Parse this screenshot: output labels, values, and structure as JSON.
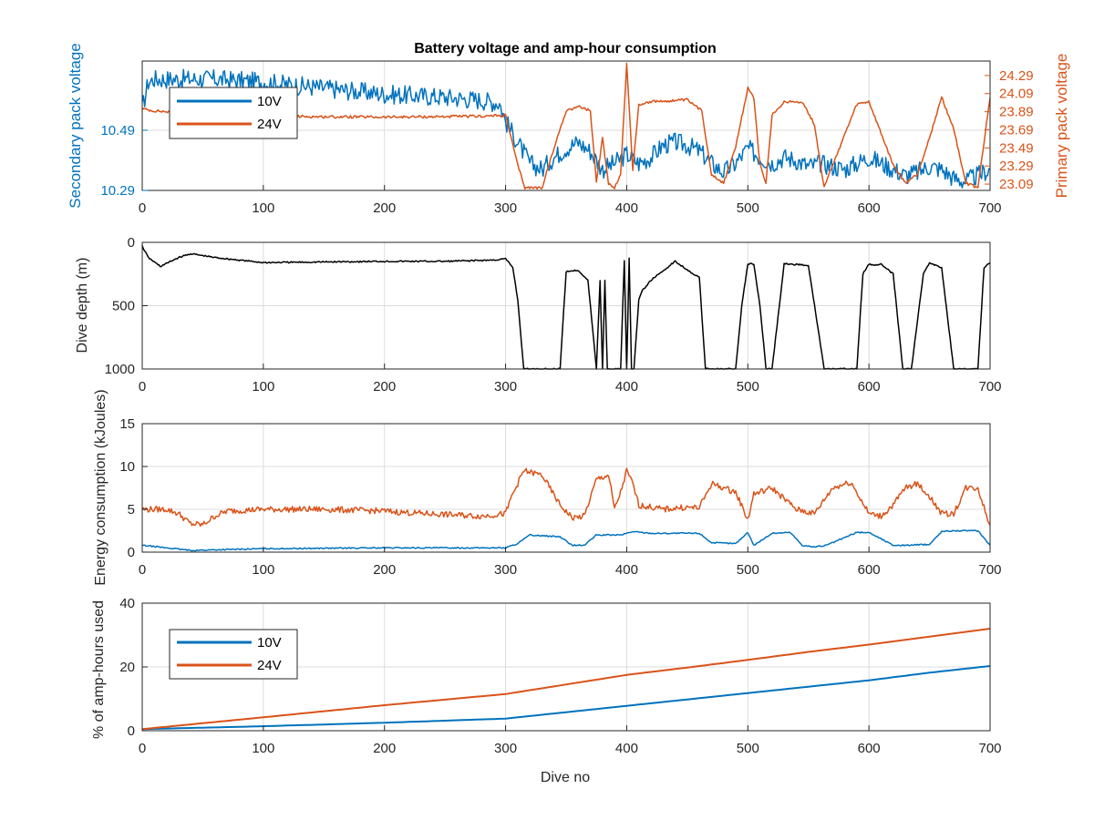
{
  "figure": {
    "title": "Battery voltage and amp-hour consumption",
    "xlabel": "Dive no"
  },
  "chart_data": [
    {
      "type": "line",
      "title": "Battery voltage and amp-hour consumption",
      "xlabel": "",
      "ylabel_left": "Secondary pack voltage",
      "ylabel_right": "Primary pack voltage",
      "xlim": [
        0,
        700
      ],
      "xticks": [
        0,
        100,
        200,
        300,
        400,
        500,
        600,
        700
      ],
      "ylim_left": [
        10.29,
        10.72
      ],
      "yticks_left": [
        10.29,
        10.49
      ],
      "ylim_right": [
        23.02,
        24.45
      ],
      "yticks_right": [
        23.09,
        23.29,
        23.49,
        23.69,
        23.89,
        24.09,
        24.29
      ],
      "grid": true,
      "legend_position": "top-left",
      "series": [
        {
          "name": "10V",
          "axis": "left",
          "color": "#0072BD",
          "noise": 0.032,
          "x": [
            0,
            5,
            10,
            30,
            60,
            100,
            150,
            200,
            250,
            280,
            295,
            300,
            310,
            320,
            330,
            340,
            350,
            360,
            370,
            380,
            390,
            400,
            410,
            420,
            430,
            440,
            450,
            460,
            470,
            480,
            490,
            500,
            510,
            520,
            530,
            540,
            550,
            560,
            570,
            580,
            590,
            600,
            610,
            620,
            630,
            640,
            650,
            660,
            670,
            680,
            690,
            700
          ],
          "y": [
            10.56,
            10.65,
            10.66,
            10.66,
            10.66,
            10.65,
            10.63,
            10.61,
            10.6,
            10.59,
            10.58,
            10.52,
            10.45,
            10.38,
            10.36,
            10.4,
            10.43,
            10.45,
            10.42,
            10.36,
            10.38,
            10.41,
            10.38,
            10.4,
            10.44,
            10.45,
            10.44,
            10.42,
            10.38,
            10.35,
            10.38,
            10.43,
            10.4,
            10.38,
            10.4,
            10.39,
            10.37,
            10.38,
            10.37,
            10.36,
            10.38,
            10.4,
            10.38,
            10.36,
            10.34,
            10.35,
            10.37,
            10.36,
            10.33,
            10.32,
            10.34,
            10.36
          ]
        },
        {
          "name": "24V",
          "axis": "right",
          "color": "#D95319",
          "noise": 0.015,
          "x": [
            0,
            10,
            30,
            60,
            100,
            200,
            280,
            300,
            310,
            316,
            330,
            345,
            350,
            360,
            370,
            375,
            380,
            385,
            390,
            395,
            400,
            405,
            410,
            420,
            450,
            462,
            470,
            480,
            490,
            500,
            505,
            510,
            515,
            520,
            530,
            545,
            555,
            563,
            570,
            590,
            600,
            620,
            630,
            640,
            650,
            660,
            670,
            680,
            690,
            700
          ],
          "y": [
            23.92,
            23.9,
            23.88,
            23.85,
            23.84,
            23.83,
            23.84,
            23.85,
            23.3,
            23.05,
            23.05,
            23.7,
            23.9,
            23.95,
            23.9,
            23.1,
            23.6,
            23.1,
            23.05,
            23.2,
            24.42,
            23.25,
            23.97,
            24.0,
            24.02,
            23.9,
            23.2,
            23.1,
            23.5,
            24.15,
            24.05,
            23.3,
            23.1,
            23.85,
            24.0,
            24.0,
            23.75,
            23.05,
            23.3,
            23.97,
            24.0,
            23.3,
            23.1,
            23.2,
            23.6,
            24.05,
            23.7,
            23.1,
            23.05,
            24.05
          ]
        }
      ]
    },
    {
      "type": "line",
      "ylabel": "Dive depth (m)",
      "xlim": [
        0,
        700
      ],
      "xticks": [
        0,
        100,
        200,
        300,
        400,
        500,
        600,
        700
      ],
      "ylim": [
        0,
        1000
      ],
      "y_reversed": true,
      "yticks": [
        0,
        500,
        1000
      ],
      "grid": true,
      "series": [
        {
          "name": "",
          "color": "#000000",
          "noise": 6,
          "x": [
            0,
            5,
            15,
            30,
            40,
            60,
            100,
            200,
            250,
            290,
            300,
            306,
            310,
            315,
            320,
            345,
            350,
            360,
            368,
            375,
            378,
            380,
            382,
            384,
            386,
            395,
            398,
            400,
            402,
            404,
            406,
            410,
            413,
            420,
            440,
            460,
            465,
            470,
            490,
            495,
            500,
            505,
            510,
            515,
            520,
            530,
            550,
            563,
            568,
            590,
            595,
            600,
            605,
            610,
            620,
            628,
            635,
            645,
            650,
            660,
            670,
            690,
            695,
            700
          ],
          "y": [
            30,
            120,
            190,
            120,
            90,
            120,
            160,
            150,
            150,
            140,
            130,
            200,
            450,
            1000,
            1000,
            1000,
            230,
            220,
            300,
            1000,
            300,
            1000,
            300,
            1000,
            1000,
            1000,
            150,
            1000,
            120,
            1000,
            1000,
            450,
            380,
            300,
            150,
            280,
            1000,
            1000,
            1000,
            500,
            170,
            170,
            500,
            1000,
            1000,
            170,
            180,
            1000,
            1000,
            1000,
            250,
            170,
            180,
            170,
            250,
            1000,
            1000,
            250,
            160,
            200,
            1000,
            1000,
            200,
            160
          ]
        }
      ]
    },
    {
      "type": "line",
      "ylabel": "Energy consumption (kJoules)",
      "xlim": [
        0,
        700
      ],
      "xticks": [
        0,
        100,
        200,
        300,
        400,
        500,
        600,
        700
      ],
      "ylim": [
        0,
        15
      ],
      "yticks": [
        0,
        5,
        10,
        15
      ],
      "grid": true,
      "series": [
        {
          "name": "",
          "color": "#D95319",
          "noise": 0.35,
          "x": [
            0,
            20,
            30,
            40,
            50,
            60,
            70,
            100,
            150,
            200,
            220,
            250,
            280,
            300,
            305,
            315,
            330,
            345,
            355,
            365,
            375,
            385,
            390,
            395,
            400,
            405,
            410,
            430,
            445,
            460,
            470,
            490,
            500,
            505,
            520,
            540,
            555,
            570,
            585,
            600,
            610,
            620,
            630,
            640,
            650,
            660,
            670,
            680,
            690,
            700
          ],
          "y": [
            5,
            5,
            4.5,
            3.3,
            3.2,
            4.2,
            4.8,
            5,
            5,
            4.8,
            4.6,
            4.4,
            4.2,
            4.5,
            6.5,
            9.5,
            9,
            5.5,
            4,
            4.2,
            8.5,
            9,
            5,
            7,
            9.5,
            8,
            5.5,
            5,
            5.2,
            5.2,
            8,
            7,
            3.8,
            6.8,
            7.5,
            5,
            4.5,
            7.5,
            8.2,
            4.5,
            4.2,
            5.5,
            7.5,
            8,
            6.5,
            4.5,
            4.5,
            7.5,
            7.5,
            3
          ]
        },
        {
          "name": "",
          "color": "#0072BD",
          "noise": 0.07,
          "x": [
            0,
            20,
            40,
            100,
            200,
            280,
            300,
            310,
            320,
            345,
            355,
            365,
            375,
            395,
            405,
            420,
            460,
            470,
            490,
            500,
            505,
            520,
            535,
            545,
            555,
            565,
            590,
            600,
            620,
            630,
            650,
            660,
            670,
            690,
            700
          ],
          "y": [
            0.8,
            0.5,
            0.2,
            0.4,
            0.5,
            0.5,
            0.5,
            1,
            2,
            1.8,
            0.8,
            0.8,
            2,
            2,
            2.4,
            2.2,
            2.2,
            1.1,
            1,
            2.3,
            0.8,
            2.2,
            2.3,
            0.8,
            0.6,
            0.8,
            2.3,
            2.3,
            0.8,
            0.8,
            0.9,
            2.4,
            2.5,
            2.5,
            0.8
          ]
        }
      ]
    },
    {
      "type": "line",
      "ylabel": "% of amp-hours used",
      "xlabel": "Dive no",
      "xlim": [
        0,
        700
      ],
      "xticks": [
        0,
        100,
        200,
        300,
        400,
        500,
        600,
        700
      ],
      "ylim": [
        0,
        40
      ],
      "yticks": [
        0,
        20,
        40
      ],
      "grid": true,
      "legend_position": "top-left",
      "series": [
        {
          "name": "10V",
          "color": "#0072BD",
          "noise": 0,
          "x": [
            0,
            100,
            200,
            300,
            350,
            400,
            450,
            500,
            550,
            600,
            650,
            700
          ],
          "y": [
            0.5,
            1.4,
            2.5,
            3.8,
            5.8,
            7.8,
            9.8,
            11.8,
            13.8,
            15.8,
            18.2,
            20.3
          ]
        },
        {
          "name": "24V",
          "color": "#D95319",
          "noise": 0,
          "x": [
            0,
            100,
            200,
            300,
            350,
            400,
            450,
            500,
            550,
            600,
            650,
            700
          ],
          "y": [
            0.5,
            4.2,
            8,
            11.5,
            14.5,
            17.5,
            19.8,
            22.2,
            24.7,
            27,
            29.5,
            32
          ]
        }
      ]
    }
  ]
}
